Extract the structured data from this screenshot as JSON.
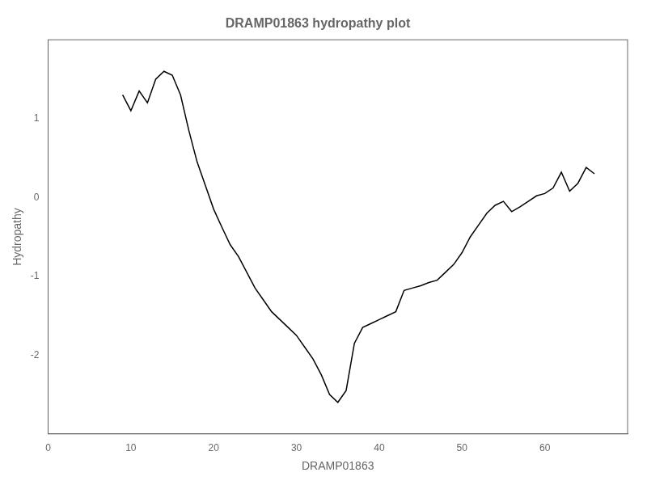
{
  "chart_data": {
    "type": "line",
    "title": "DRAMP01863 hydropathy plot",
    "xlabel": "DRAMP01863",
    "ylabel": "Hydropathy",
    "x": [
      9,
      10,
      11,
      12,
      13,
      14,
      15,
      16,
      17,
      18,
      19,
      20,
      21,
      22,
      23,
      24,
      25,
      26,
      27,
      28,
      29,
      30,
      31,
      32,
      33,
      34,
      35,
      36,
      37,
      38,
      39,
      40,
      41,
      42,
      43,
      44,
      45,
      46,
      47,
      48,
      49,
      50,
      51,
      52,
      53,
      54,
      55,
      56,
      57,
      58,
      59,
      60,
      61,
      62,
      63,
      64,
      65,
      66
    ],
    "values": [
      1.3,
      1.1,
      1.35,
      1.2,
      1.5,
      1.6,
      1.55,
      1.3,
      0.85,
      0.45,
      0.15,
      -0.15,
      -0.38,
      -0.6,
      -0.75,
      -0.95,
      -1.15,
      -1.3,
      -1.45,
      -1.55,
      -1.65,
      -1.75,
      -1.9,
      -2.05,
      -2.25,
      -2.5,
      -2.6,
      -2.45,
      -1.85,
      -1.65,
      -1.6,
      -1.55,
      -1.5,
      -1.45,
      -1.18,
      -1.15,
      -1.12,
      -1.08,
      -1.05,
      -0.95,
      -0.85,
      -0.7,
      -0.5,
      -0.35,
      -0.2,
      -0.1,
      -0.05,
      -0.18,
      -0.12,
      -0.05,
      0.02,
      0.05,
      0.12,
      0.32,
      0.08,
      0.18,
      0.38,
      0.3
    ],
    "color": "#000000",
    "xlim": [
      0,
      70
    ],
    "ylim": [
      -3.0,
      2.0
    ],
    "xticks": [
      0,
      10,
      20,
      30,
      40,
      50,
      60
    ],
    "yticks": [
      -2,
      -1,
      0,
      1
    ],
    "grid": false
  }
}
